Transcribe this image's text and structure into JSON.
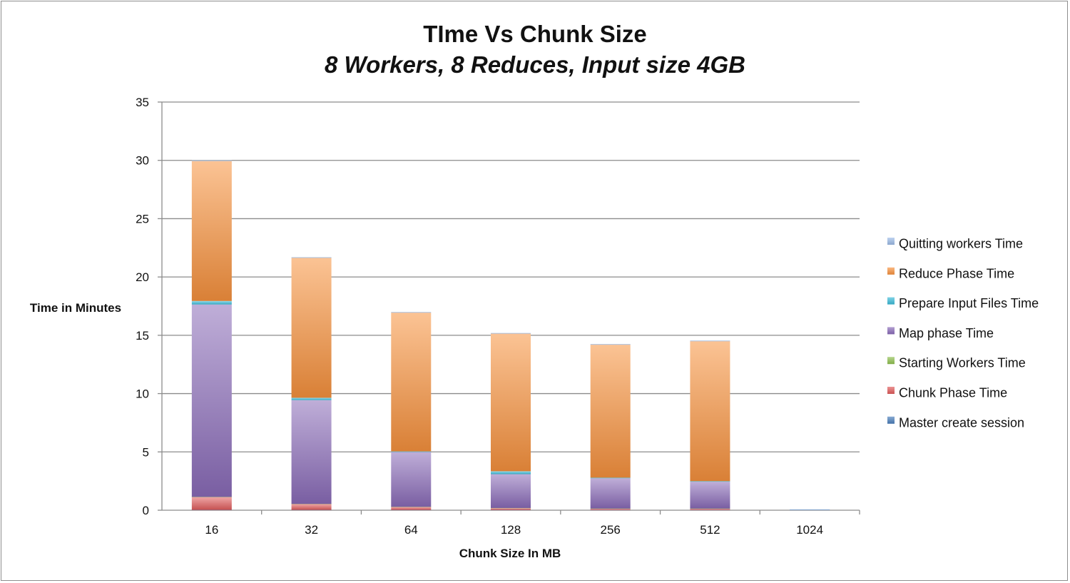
{
  "chart_data": {
    "type": "bar",
    "stacked": true,
    "title": "TIme Vs Chunk Size",
    "subtitle": "8 Workers, 8 Reduces, Input size 4GB",
    "xlabel": "Chunk Size In MB",
    "ylabel": "Time in Minutes",
    "ylim": [
      0,
      35
    ],
    "yticks": [
      "0",
      "5",
      "10",
      "15",
      "20",
      "25",
      "30",
      "35"
    ],
    "ytick_values": [
      0,
      5,
      10,
      15,
      20,
      25,
      30,
      35
    ],
    "grid": true,
    "legend_position": "right",
    "categories": [
      "16",
      "32",
      "64",
      "128",
      "256",
      "512",
      "1024"
    ],
    "series": [
      {
        "name": "Master create session",
        "color": "#4a7ebb",
        "values": [
          0.02,
          0.02,
          0.02,
          0.02,
          0.02,
          0.02,
          0.02
        ]
      },
      {
        "name": "Chunk Phase Time",
        "color": "#e05b5b",
        "values": [
          1.1,
          0.5,
          0.25,
          0.15,
          0.1,
          0.1,
          0.0
        ]
      },
      {
        "name": "Starting Workers Time",
        "color": "#8fc04f",
        "values": [
          0.02,
          0.02,
          0.02,
          0.02,
          0.02,
          0.02,
          0.0
        ]
      },
      {
        "name": "Map phase Time",
        "color": "#8a6bb8",
        "values": [
          16.5,
          8.9,
          4.7,
          2.9,
          2.6,
          2.3,
          0.0
        ]
      },
      {
        "name": "Prepare Input Files Time",
        "color": "#3bbbd8",
        "values": [
          0.3,
          0.2,
          0.05,
          0.25,
          0.05,
          0.05,
          0.0
        ]
      },
      {
        "name": "Reduce Phase Time",
        "color": "#f7913d",
        "values": [
          12.0,
          12.0,
          11.9,
          11.8,
          11.4,
          12.0,
          0.0
        ]
      },
      {
        "name": "Quitting workers Time",
        "color": "#9dbbe6",
        "values": [
          0.06,
          0.06,
          0.06,
          0.06,
          0.06,
          0.06,
          0.06
        ]
      }
    ]
  }
}
